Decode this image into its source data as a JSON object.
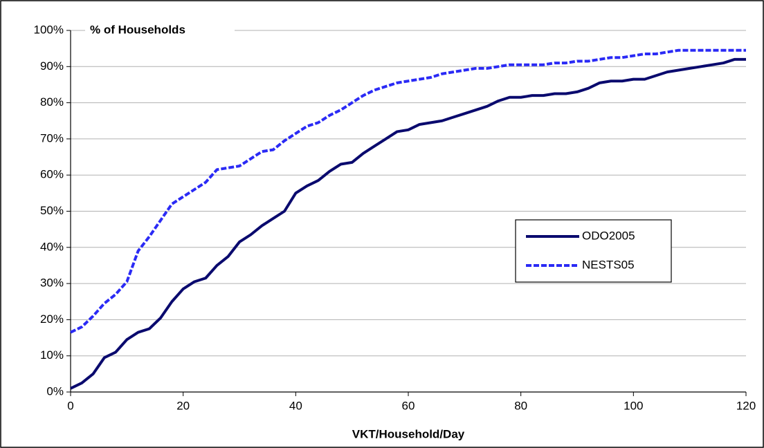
{
  "chart_data": {
    "type": "line",
    "y_label": "% of Households",
    "x_label": "VKT/Household/Day",
    "x": [
      0,
      2,
      4,
      6,
      8,
      10,
      12,
      14,
      16,
      18,
      20,
      22,
      24,
      26,
      28,
      30,
      32,
      34,
      36,
      38,
      40,
      42,
      44,
      46,
      48,
      50,
      52,
      54,
      56,
      58,
      60,
      62,
      64,
      66,
      68,
      70,
      72,
      74,
      76,
      78,
      80,
      82,
      84,
      86,
      88,
      90,
      92,
      94,
      96,
      98,
      100,
      102,
      104,
      106,
      108,
      110,
      112,
      114,
      116,
      118,
      120
    ],
    "series": [
      {
        "name": "ODO2005",
        "color": "#0a0a6e",
        "dashed": false,
        "values": [
          1,
          2.5,
          5,
          9.5,
          11,
          14.5,
          16.5,
          17.5,
          20.5,
          25,
          28.5,
          30.5,
          31.5,
          35,
          37.5,
          41.5,
          43.5,
          46,
          48,
          50,
          55,
          57,
          58.5,
          61,
          63,
          63.5,
          66,
          68,
          70,
          72,
          72.5,
          74,
          74.5,
          75,
          76,
          77,
          78,
          79,
          80.5,
          81.5,
          81.5,
          82,
          82,
          82.5,
          82.5,
          83,
          84,
          85.5,
          86,
          86,
          86.5,
          86.5,
          87.5,
          88.5,
          89,
          89.5,
          90,
          90.5,
          91,
          92,
          92
        ]
      },
      {
        "name": "NESTS05",
        "color": "#2a2af5",
        "dashed": true,
        "values": [
          16.5,
          18,
          21,
          24.5,
          27,
          30.5,
          39,
          43,
          47.5,
          52,
          54,
          56,
          58,
          61.5,
          62,
          62.5,
          64.5,
          66.5,
          67,
          69.5,
          71.5,
          73.5,
          74.5,
          76.5,
          78,
          80,
          82,
          83.5,
          84.5,
          85.5,
          86,
          86.5,
          87,
          88,
          88.5,
          89,
          89.5,
          89.5,
          90,
          90.5,
          90.5,
          90.5,
          90.5,
          91,
          91,
          91.5,
          91.5,
          92,
          92.5,
          92.5,
          93,
          93.5,
          93.5,
          94,
          94.5,
          94.5,
          94.5,
          94.5,
          94.5,
          94.5,
          94.5
        ]
      }
    ],
    "xlim": [
      0,
      120
    ],
    "xticks": [
      0,
      20,
      40,
      60,
      80,
      100,
      120
    ],
    "ylim": [
      0,
      100
    ],
    "yticks": [
      {
        "value": 0,
        "label": "0%"
      },
      {
        "value": 10,
        "label": "10%"
      },
      {
        "value": 20,
        "label": "20%"
      },
      {
        "value": 30,
        "label": "30%"
      },
      {
        "value": 40,
        "label": "40%"
      },
      {
        "value": 50,
        "label": "50%"
      },
      {
        "value": 60,
        "label": "60%"
      },
      {
        "value": 70,
        "label": "70%"
      },
      {
        "value": 80,
        "label": "80%"
      },
      {
        "value": 90,
        "label": "90%"
      },
      {
        "value": 100,
        "label": "100%"
      }
    ],
    "grid": true,
    "legend": "center-right"
  }
}
